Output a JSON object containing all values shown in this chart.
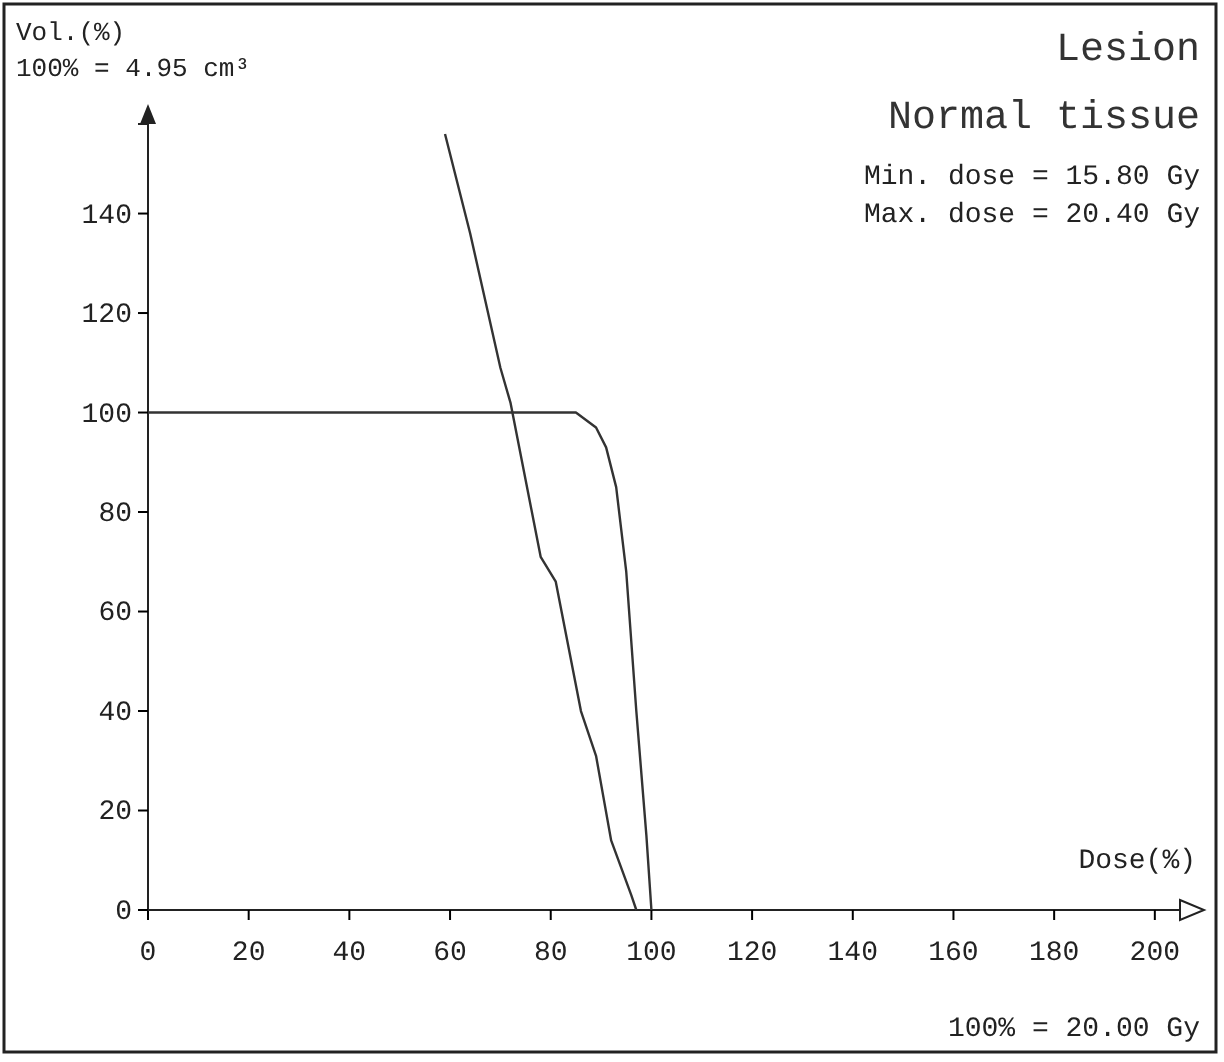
{
  "chart_data": {
    "type": "line",
    "xlabel": "Dose(%)",
    "ylabel": "Vol.(%)",
    "xlim": [
      0,
      205
    ],
    "ylim": [
      0,
      158
    ],
    "xticks": [
      0,
      20,
      40,
      60,
      80,
      100,
      120,
      140,
      160,
      180,
      200
    ],
    "yticks": [
      0,
      20,
      40,
      60,
      80,
      100,
      120,
      140
    ],
    "legend": "top right",
    "line_style": "solid",
    "marker": "none",
    "grid": false,
    "series": [
      {
        "name": "Lesion",
        "color": "#333333",
        "x": [
          0,
          85,
          89,
          91,
          93,
          95,
          97,
          99,
          100
        ],
        "values": [
          100,
          100,
          97,
          93,
          85,
          68,
          40,
          15,
          0
        ]
      },
      {
        "name": "Normal tissue",
        "color": "#333333",
        "x": [
          59,
          64,
          70,
          72,
          78,
          81,
          86,
          89,
          92,
          96,
          97
        ],
        "values": [
          156,
          136,
          109,
          102,
          71,
          66,
          40,
          31,
          14,
          3,
          0
        ]
      }
    ],
    "annotations": [
      "100% = 4.95 cm³",
      "Min. dose = 15.80 Gy",
      "Max. dose = 20.40 Gy",
      "100% = 20.00 Gy"
    ]
  }
}
